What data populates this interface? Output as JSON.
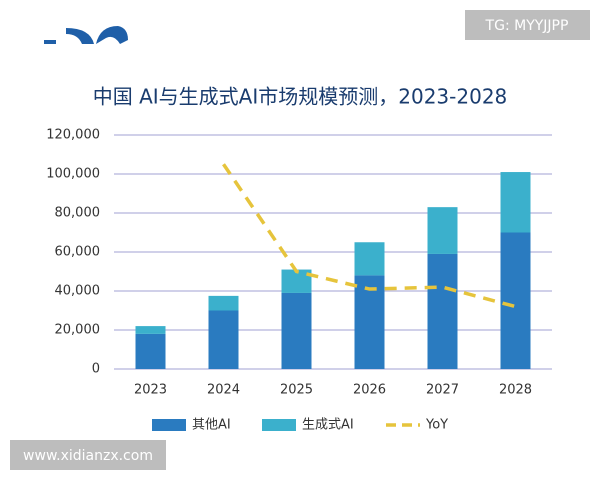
{
  "watermarks": [
    "TG: MYYJJPP",
    "www.xidianzx.com"
  ],
  "chart_data": {
    "type": "stacked-bar-line",
    "title": "中国 AI与生成式AI市场规模预测，2023-2028",
    "categories": [
      "2023",
      "2024",
      "2025",
      "2026",
      "2027",
      "2028"
    ],
    "series": [
      {
        "name": "其他AI",
        "color": "#2a7bc0",
        "kind": "bar",
        "values": [
          18000,
          30000,
          39000,
          48000,
          59000,
          70000
        ]
      },
      {
        "name": "生成式AI",
        "color": "#3bb0cc",
        "kind": "bar",
        "values": [
          4000,
          7500,
          12000,
          17000,
          24000,
          31000
        ]
      },
      {
        "name": "YoY",
        "color": "#e6c43c",
        "kind": "line",
        "values": [
          null,
          105000,
          50000,
          41000,
          42000,
          32000
        ]
      }
    ],
    "ylim": [
      0,
      120000
    ],
    "yticks": [
      {
        "value": 0,
        "label": "0"
      },
      {
        "value": 20000,
        "label": "20,000"
      },
      {
        "value": 40000,
        "label": "40,000"
      },
      {
        "value": 60000,
        "label": "60,000"
      },
      {
        "value": 80000,
        "label": "80,000"
      },
      {
        "value": 100000,
        "label": "100,000"
      },
      {
        "value": 120000,
        "label": "120,000"
      }
    ],
    "grid": true
  }
}
